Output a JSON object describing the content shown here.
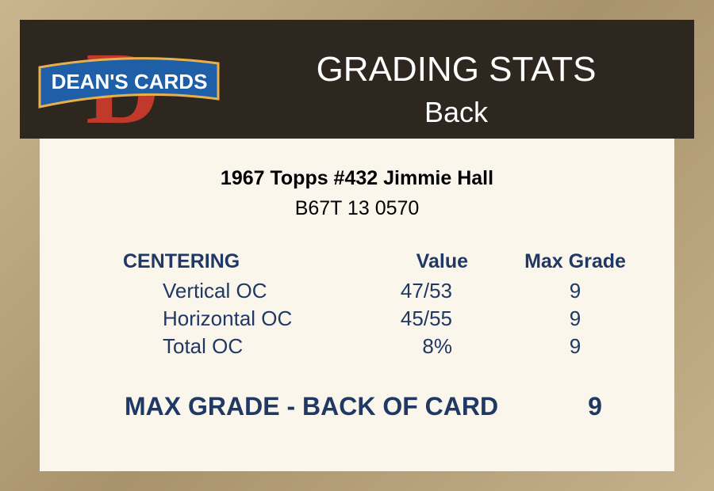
{
  "header": {
    "logo": {
      "letter": "D",
      "text": "DEAN'S CARDS"
    },
    "title": "GRADING STATS",
    "subtitle": "Back"
  },
  "card": {
    "name": "1967 Topps #432 Jimmie Hall",
    "cert": "B67T 13 0570"
  },
  "table": {
    "headers": [
      "CENTERING",
      "Value",
      "Max Grade"
    ],
    "rows": [
      [
        "Vertical OC",
        "47/53",
        "9"
      ],
      [
        "Horizontal OC",
        "45/55",
        "9"
      ],
      [
        "Total OC",
        "8%",
        "9"
      ]
    ]
  },
  "summary": {
    "label": "MAX GRADE - BACK OF CARD",
    "value": "9"
  }
}
